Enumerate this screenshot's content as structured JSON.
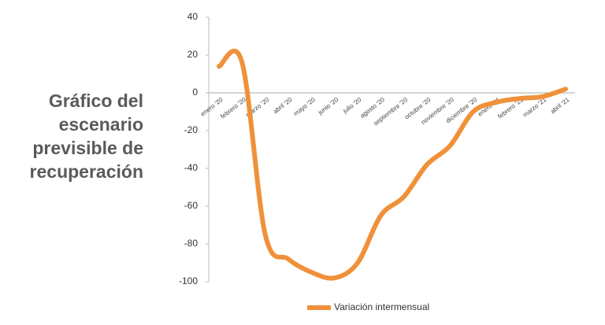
{
  "chart_data": {
    "type": "line",
    "title": "Gráfico del escenario previsible de recuperación",
    "categories": [
      "enero '20",
      "febrero '20",
      "marzo '20",
      "abril '20",
      "mayo '20",
      "junio '20",
      "julio '20",
      "agosto '20",
      "septiembre '20",
      "octubre '20",
      "noviembre '20",
      "diciembre '20",
      "enero '21",
      "febrero '21",
      "marzo '21",
      "abril '21"
    ],
    "series": [
      {
        "name": "Variación intermensual",
        "color": "#f0913a",
        "values": [
          14,
          16,
          -75,
          -88,
          -95,
          -98,
          -90,
          -65,
          -55,
          -38,
          -28,
          -10,
          -5,
          -3,
          -2,
          2
        ]
      }
    ],
    "ylim": [
      -100,
      40
    ],
    "yticks": [
      -100,
      -80,
      -60,
      -40,
      -20,
      0,
      20,
      40
    ],
    "smooth": true,
    "legend": "bottom"
  }
}
